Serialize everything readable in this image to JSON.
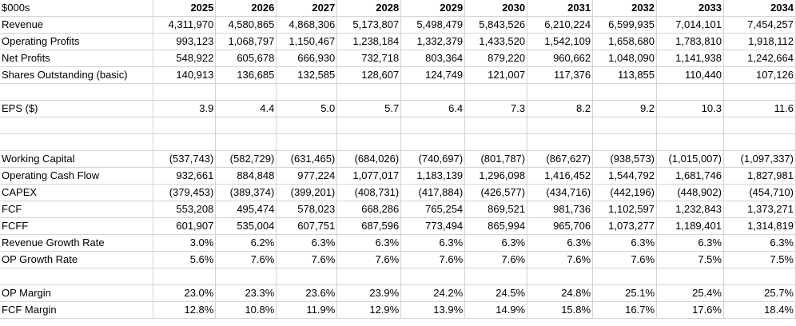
{
  "header_label": "$000s",
  "years": [
    "2025",
    "2026",
    "2027",
    "2028",
    "2029",
    "2030",
    "2031",
    "2032",
    "2033",
    "2034"
  ],
  "sections": [
    [
      {
        "label": "Revenue",
        "values": [
          "4,311,970",
          "4,580,865",
          "4,868,306",
          "5,173,807",
          "5,498,479",
          "5,843,526",
          "6,210,224",
          "6,599,935",
          "7,014,101",
          "7,454,257"
        ]
      },
      {
        "label": "Operating Profits",
        "values": [
          "993,123",
          "1,068,797",
          "1,150,467",
          "1,238,184",
          "1,332,379",
          "1,433,520",
          "1,542,109",
          "1,658,680",
          "1,783,810",
          "1,918,112"
        ]
      },
      {
        "label": "Net Profits",
        "values": [
          "548,922",
          "605,678",
          "666,930",
          "732,718",
          "803,364",
          "879,220",
          "960,662",
          "1,048,090",
          "1,141,938",
          "1,242,664"
        ]
      },
      {
        "label": "Shares Outstanding (basic)",
        "values": [
          "140,913",
          "136,685",
          "132,585",
          "128,607",
          "124,749",
          "121,007",
          "117,376",
          "113,855",
          "110,440",
          "107,126"
        ]
      }
    ],
    [
      {
        "label": "EPS ($)",
        "values": [
          "3.9",
          "4.4",
          "5.0",
          "5.7",
          "6.4",
          "7.3",
          "8.2",
          "9.2",
          "10.3",
          "11.6"
        ]
      }
    ],
    [
      {
        "label": "Working Capital",
        "values": [
          "(537,743)",
          "(582,729)",
          "(631,465)",
          "(684,026)",
          "(740,697)",
          "(801,787)",
          "(867,627)",
          "(938,573)",
          "(1,015,007)",
          "(1,097,337)"
        ]
      },
      {
        "label": "Operating Cash Flow",
        "values": [
          "932,661",
          "884,848",
          "977,224",
          "1,077,017",
          "1,183,139",
          "1,296,098",
          "1,416,452",
          "1,544,792",
          "1,681,746",
          "1,827,981"
        ]
      },
      {
        "label": "CAPEX",
        "values": [
          "(379,453)",
          "(389,374)",
          "(399,201)",
          "(408,731)",
          "(417,884)",
          "(426,577)",
          "(434,716)",
          "(442,196)",
          "(448,902)",
          "(454,710)"
        ]
      },
      {
        "label": "FCF",
        "values": [
          "553,208",
          "495,474",
          "578,023",
          "668,286",
          "765,254",
          "869,521",
          "981,736",
          "1,102,597",
          "1,232,843",
          "1,373,271"
        ]
      },
      {
        "label": "FCFF",
        "values": [
          "601,907",
          "535,004",
          "607,751",
          "687,596",
          "773,494",
          "865,994",
          "965,706",
          "1,073,277",
          "1,189,401",
          "1,314,819"
        ]
      },
      {
        "label": "Revenue Growth Rate",
        "values": [
          "3.0%",
          "6.2%",
          "6.3%",
          "6.3%",
          "6.3%",
          "6.3%",
          "6.3%",
          "6.3%",
          "6.3%",
          "6.3%"
        ]
      },
      {
        "label": "OP Growth Rate",
        "values": [
          "5.6%",
          "7.6%",
          "7.6%",
          "7.6%",
          "7.6%",
          "7.6%",
          "7.6%",
          "7.6%",
          "7.5%",
          "7.5%"
        ]
      }
    ],
    [
      {
        "label": "OP Margin",
        "values": [
          "23.0%",
          "23.3%",
          "23.6%",
          "23.9%",
          "24.2%",
          "24.5%",
          "24.8%",
          "25.1%",
          "25.4%",
          "25.7%"
        ]
      },
      {
        "label": "FCF Margin",
        "values": [
          "12.8%",
          "10.8%",
          "11.9%",
          "12.9%",
          "13.9%",
          "14.9%",
          "15.8%",
          "16.7%",
          "17.6%",
          "18.4%"
        ]
      }
    ]
  ]
}
